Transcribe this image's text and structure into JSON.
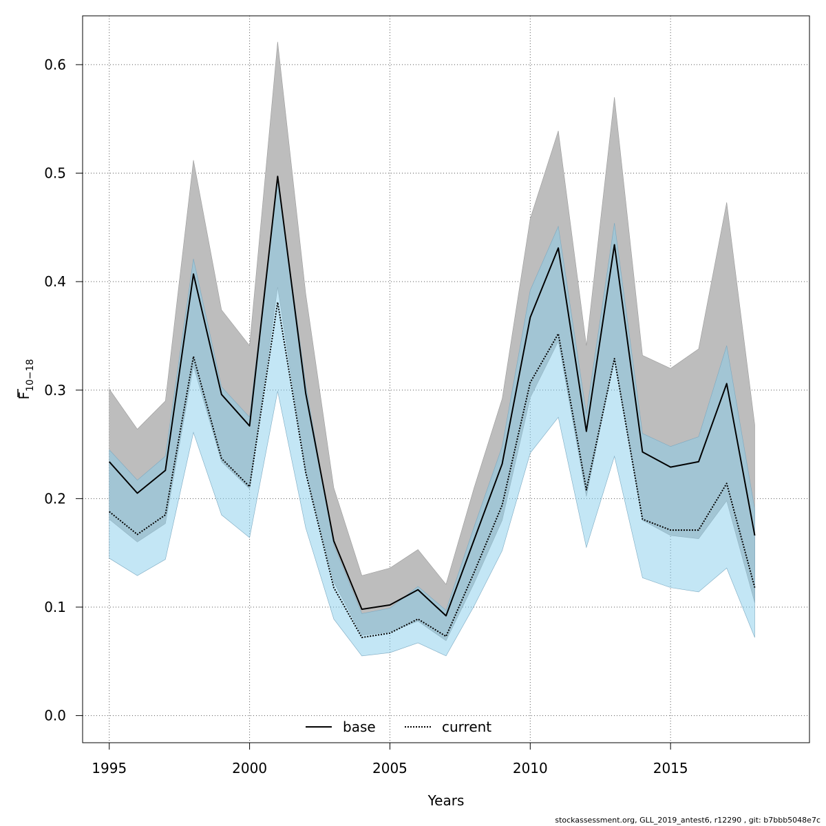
{
  "footer": "stockassessment.org, GLL_2019_antest6, r12290 , git: b7bbb5048e7c",
  "chart_data": {
    "type": "area",
    "xlabel": "Years",
    "ylabel_main": "F",
    "ylabel_sub": "10−18",
    "xlim": [
      1994.05,
      2019.95
    ],
    "ylim": [
      -0.025,
      0.645
    ],
    "xticks": [
      1995,
      2000,
      2005,
      2010,
      2015
    ],
    "yticks": [
      0.0,
      0.1,
      0.2,
      0.3,
      0.4,
      0.5,
      0.6
    ],
    "ytick_labels": [
      "0.0",
      "0.1",
      "0.2",
      "0.3",
      "0.4",
      "0.5",
      "0.6"
    ],
    "grid": true,
    "legend_position": "bottom-center",
    "x": [
      1995,
      1996,
      1997,
      1998,
      1999,
      2000,
      2001,
      2002,
      2003,
      2004,
      2005,
      2006,
      2007,
      2008,
      2009,
      2010,
      2011,
      2012,
      2013,
      2014,
      2015,
      2016,
      2017,
      2018
    ],
    "series": [
      {
        "name": "base",
        "line_style": "solid",
        "line_color": "#000000",
        "band_color": "#bdbdbd",
        "values": [
          0.234,
          0.205,
          0.226,
          0.407,
          0.296,
          0.267,
          0.497,
          0.297,
          0.161,
          0.098,
          0.102,
          0.116,
          0.092,
          0.162,
          0.232,
          0.367,
          0.431,
          0.262,
          0.434,
          0.243,
          0.229,
          0.234,
          0.306,
          0.166
        ],
        "lower": [
          0.181,
          0.16,
          0.177,
          0.322,
          0.234,
          0.209,
          0.395,
          0.225,
          0.123,
          0.074,
          0.077,
          0.087,
          0.069,
          0.122,
          0.18,
          0.293,
          0.345,
          0.202,
          0.329,
          0.18,
          0.166,
          0.163,
          0.198,
          0.104
        ],
        "upper": [
          0.301,
          0.264,
          0.29,
          0.512,
          0.374,
          0.341,
          0.621,
          0.389,
          0.21,
          0.129,
          0.136,
          0.153,
          0.121,
          0.21,
          0.292,
          0.458,
          0.539,
          0.341,
          0.57,
          0.332,
          0.32,
          0.338,
          0.473,
          0.268
        ]
      },
      {
        "name": "current",
        "line_style": "dotted",
        "line_color": "#000000",
        "band_color": "#87ceeb",
        "values": [
          0.188,
          0.167,
          0.185,
          0.331,
          0.237,
          0.211,
          0.381,
          0.224,
          0.118,
          0.072,
          0.076,
          0.089,
          0.073,
          0.132,
          0.194,
          0.307,
          0.352,
          0.208,
          0.329,
          0.181,
          0.171,
          0.171,
          0.214,
          0.118
        ],
        "lower": [
          0.145,
          0.129,
          0.144,
          0.261,
          0.185,
          0.164,
          0.299,
          0.173,
          0.089,
          0.055,
          0.058,
          0.067,
          0.055,
          0.101,
          0.152,
          0.242,
          0.275,
          0.155,
          0.239,
          0.127,
          0.118,
          0.114,
          0.136,
          0.072
        ],
        "upper": [
          0.245,
          0.217,
          0.239,
          0.421,
          0.303,
          0.275,
          0.496,
          0.305,
          0.157,
          0.094,
          0.099,
          0.119,
          0.097,
          0.174,
          0.248,
          0.392,
          0.451,
          0.278,
          0.454,
          0.26,
          0.248,
          0.257,
          0.341,
          0.19
        ]
      }
    ]
  }
}
